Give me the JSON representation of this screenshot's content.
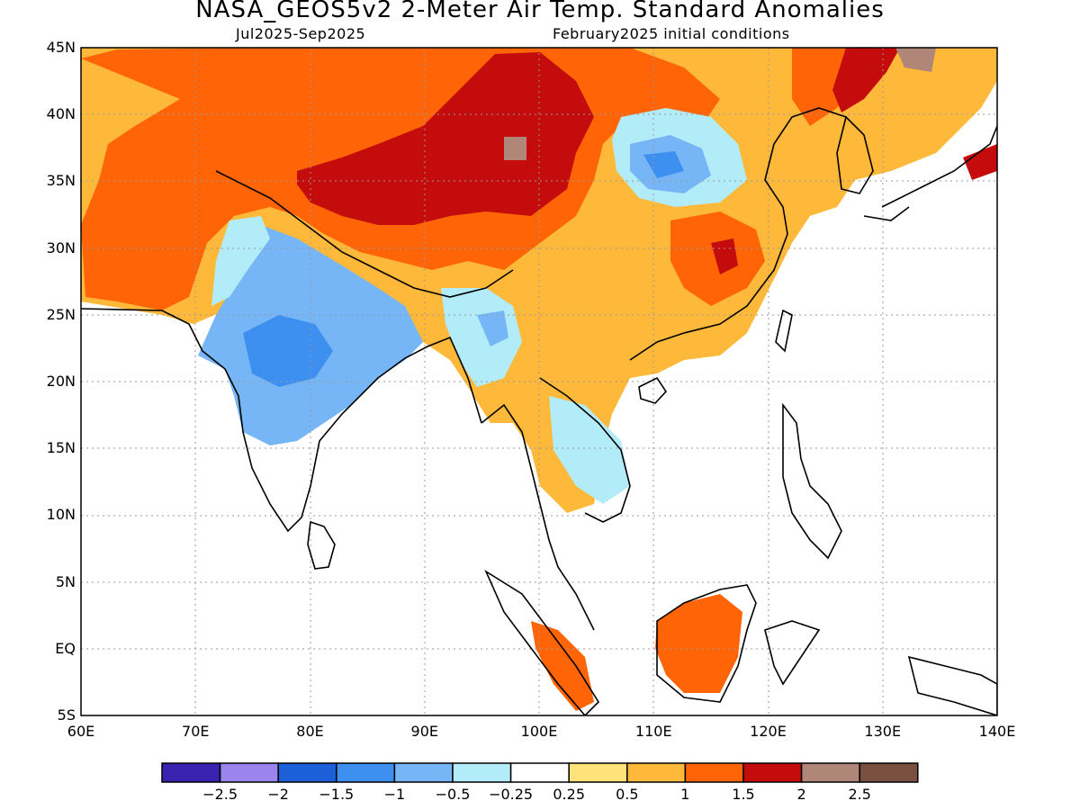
{
  "title": "NASA_GEOS5v2 2-Meter Air Temp. Standard Anomalies",
  "period": "Jul2025-Sep2025",
  "init": "February2025 initial conditions",
  "lat_ticks": [
    "45N",
    "40N",
    "35N",
    "30N",
    "25N",
    "20N",
    "15N",
    "10N",
    "5N",
    "EQ",
    "5S"
  ],
  "lon_ticks": [
    "60E",
    "70E",
    "80E",
    "90E",
    "100E",
    "110E",
    "120E",
    "130E",
    "140E"
  ],
  "colorbar": {
    "colors": [
      "#3a22b0",
      "#9b84ee",
      "#1d5fd8",
      "#3d8ff0",
      "#76b6f6",
      "#b2ecf9",
      "#ffffff",
      "#ffe27a",
      "#ffb93a",
      "#ff6406",
      "#c40c0c",
      "#b08678",
      "#7a5040"
    ],
    "labels": [
      "-2.5",
      "-2",
      "-1.5",
      "-1",
      "-0.5",
      "-0.25",
      "0.25",
      "0.5",
      "1",
      "1.5",
      "2",
      "2.5"
    ]
  }
}
